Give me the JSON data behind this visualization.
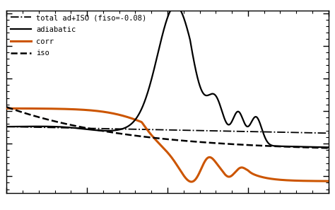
{
  "background_color": "#ffffff",
  "legend_labels": [
    "total ad+ISO (fiso=-0.08)",
    "adiabatic",
    "corr",
    "iso"
  ],
  "adiabatic_color": "#000000",
  "total_color": "#000000",
  "iso_color": "#000000",
  "corr_color": "#cc5500",
  "fig_width": 4.74,
  "fig_height": 2.97,
  "dpi": 100
}
